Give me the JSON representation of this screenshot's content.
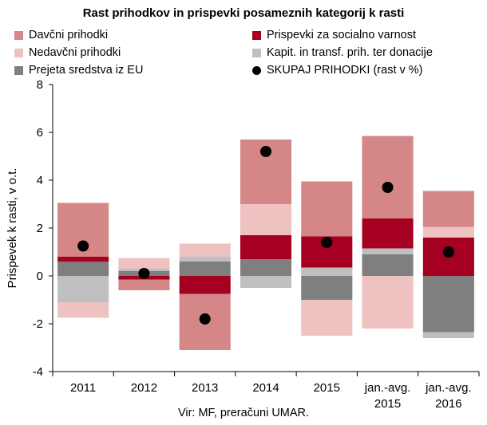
{
  "chart_data": {
    "type": "bar",
    "stacked": true,
    "title": "Rast prihodkov in prispevki posameznih kategorij k rasti",
    "ylabel": "Prispevek k rasti, v o.t.",
    "ylim": [
      -4,
      8
    ],
    "yticks": [
      "-4",
      "-2",
      "0",
      "2",
      "4",
      "6",
      "8"
    ],
    "ytick_values": [
      -4,
      -2,
      0,
      2,
      4,
      6,
      8
    ],
    "grid": false,
    "legend_position": "top",
    "categories": [
      [
        "2011"
      ],
      [
        "2012"
      ],
      [
        "2013"
      ],
      [
        "2014"
      ],
      [
        "2015"
      ],
      [
        "jan.-avg.",
        "2015"
      ],
      [
        "jan.-avg.",
        "2016"
      ]
    ],
    "series": [
      {
        "name": "Prejeta sredstva iz EU",
        "color": "#7f7f7f",
        "values": [
          0.6,
          0.2,
          0.6,
          0.7,
          -1.0,
          0.9,
          -2.35
        ]
      },
      {
        "name": "Kapit. in transf. prih. ter donacije",
        "color": "#bfbfbf",
        "values": [
          -1.1,
          0.1,
          0.2,
          -0.5,
          0.35,
          0.25,
          -0.25
        ]
      },
      {
        "name": "Prispevki za socialno varnost",
        "color": "#a50021",
        "values": [
          0.2,
          -0.15,
          -0.75,
          1.0,
          1.3,
          1.25,
          1.6
        ]
      },
      {
        "name": "Nedavčni prihodki",
        "color": "#efc2c2",
        "values": [
          -0.65,
          0.45,
          0.55,
          1.3,
          -1.5,
          -2.2,
          0.45
        ]
      },
      {
        "name": "Davčni prihodki",
        "color": "#d58686",
        "values": [
          2.25,
          -0.45,
          -2.35,
          2.7,
          2.3,
          3.45,
          1.5
        ]
      }
    ],
    "total": {
      "name": "SKUPAJ PRIHODKI (rast v %)",
      "color": "#000000",
      "values": [
        1.25,
        0.1,
        -1.8,
        5.2,
        1.4,
        3.7,
        1.0
      ]
    },
    "legend_order": [
      "Davčni prihodki",
      "Prispevki za socialno varnost",
      "Nedavčni prihodki",
      "Kapit. in transf. prih. ter donacije",
      "Prejeta sredstva iz EU",
      "SKUPAJ PRIHODKI (rast v %)"
    ],
    "source": "Vir: MF, preračuni UMAR."
  }
}
